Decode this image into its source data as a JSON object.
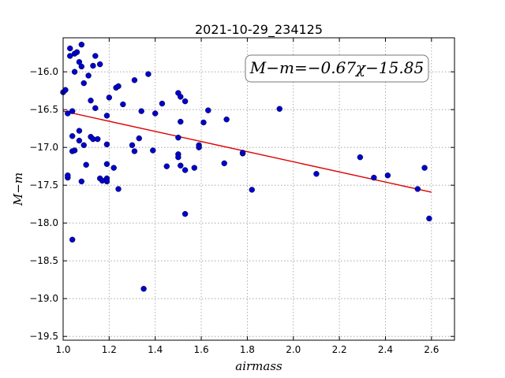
{
  "chart_data": {
    "type": "scatter",
    "title": "2021-10-29_234125",
    "xlabel": "airmass",
    "ylabel": "M−m",
    "xlim": [
      1.0,
      2.7
    ],
    "ylim": [
      -19.55,
      -15.55
    ],
    "y_inverted": true,
    "x_ticks": [
      1.0,
      1.2,
      1.4,
      1.6,
      1.8,
      2.0,
      2.2,
      2.4,
      2.6
    ],
    "y_ticks": [
      -16.0,
      -16.5,
      -17.0,
      -17.5,
      -18.0,
      -18.5,
      -19.0,
      -19.5
    ],
    "x_tick_labels": [
      "1.0",
      "1.2",
      "1.4",
      "1.6",
      "1.8",
      "2.0",
      "2.2",
      "2.4",
      "2.6"
    ],
    "y_tick_labels": [
      "−16.0",
      "−16.5",
      "−17.0",
      "−17.5",
      "−18.0",
      "−18.5",
      "−19.0",
      "−19.5"
    ],
    "grid": true,
    "annotation": "M−m=−0.67χ−15.85",
    "point_color": "#0000cc",
    "fit_color": "#dd0000",
    "fit": {
      "slope": -0.67,
      "intercept": -15.85,
      "x_range": [
        1.0,
        2.6
      ]
    },
    "points": [
      [
        1.0,
        -16.27
      ],
      [
        1.01,
        -16.24
      ],
      [
        1.02,
        -16.55
      ],
      [
        1.02,
        -17.4
      ],
      [
        1.02,
        -17.37
      ],
      [
        1.03,
        -15.69
      ],
      [
        1.03,
        -15.79
      ],
      [
        1.04,
        -16.52
      ],
      [
        1.04,
        -16.85
      ],
      [
        1.04,
        -17.05
      ],
      [
        1.04,
        -18.22
      ],
      [
        1.05,
        -15.76
      ],
      [
        1.05,
        -16.0
      ],
      [
        1.05,
        -17.04
      ],
      [
        1.06,
        -15.74
      ],
      [
        1.07,
        -15.87
      ],
      [
        1.07,
        -16.78
      ],
      [
        1.07,
        -16.91
      ],
      [
        1.08,
        -15.64
      ],
      [
        1.08,
        -15.93
      ],
      [
        1.08,
        -17.45
      ],
      [
        1.09,
        -16.15
      ],
      [
        1.09,
        -16.97
      ],
      [
        1.1,
        -17.23
      ],
      [
        1.11,
        -16.05
      ],
      [
        1.12,
        -16.38
      ],
      [
        1.12,
        -16.86
      ],
      [
        1.13,
        -16.89
      ],
      [
        1.13,
        -15.92
      ],
      [
        1.14,
        -15.79
      ],
      [
        1.14,
        -16.48
      ],
      [
        1.15,
        -16.89
      ],
      [
        1.16,
        -15.9
      ],
      [
        1.16,
        -17.41
      ],
      [
        1.17,
        -17.44
      ],
      [
        1.19,
        -16.96
      ],
      [
        1.19,
        -17.22
      ],
      [
        1.19,
        -17.41
      ],
      [
        1.19,
        -17.45
      ],
      [
        1.19,
        -16.58
      ],
      [
        1.2,
        -16.34
      ],
      [
        1.22,
        -17.27
      ],
      [
        1.23,
        -16.21
      ],
      [
        1.24,
        -16.19
      ],
      [
        1.24,
        -17.55
      ],
      [
        1.26,
        -16.43
      ],
      [
        1.3,
        -16.97
      ],
      [
        1.31,
        -16.11
      ],
      [
        1.31,
        -17.05
      ],
      [
        1.33,
        -16.88
      ],
      [
        1.34,
        -16.52
      ],
      [
        1.35,
        -18.87
      ],
      [
        1.37,
        -16.03
      ],
      [
        1.39,
        -17.04
      ],
      [
        1.4,
        -16.55
      ],
      [
        1.43,
        -16.42
      ],
      [
        1.45,
        -17.25
      ],
      [
        1.5,
        -16.28
      ],
      [
        1.5,
        -16.87
      ],
      [
        1.5,
        -17.09
      ],
      [
        1.5,
        -17.13
      ],
      [
        1.51,
        -17.24
      ],
      [
        1.51,
        -16.33
      ],
      [
        1.51,
        -16.66
      ],
      [
        1.53,
        -16.39
      ],
      [
        1.53,
        -17.3
      ],
      [
        1.53,
        -17.88
      ],
      [
        1.57,
        -17.27
      ],
      [
        1.59,
        -16.97
      ],
      [
        1.59,
        -17.0
      ],
      [
        1.61,
        -16.67
      ],
      [
        1.63,
        -16.51
      ],
      [
        1.7,
        -17.21
      ],
      [
        1.71,
        -16.63
      ],
      [
        1.78,
        -17.08
      ],
      [
        1.78,
        -17.07
      ],
      [
        1.82,
        -17.56
      ],
      [
        1.94,
        -16.49
      ],
      [
        2.1,
        -17.35
      ],
      [
        2.29,
        -17.13
      ],
      [
        2.35,
        -17.4
      ],
      [
        2.41,
        -17.37
      ],
      [
        2.54,
        -17.55
      ],
      [
        2.57,
        -17.27
      ],
      [
        2.59,
        -17.94
      ]
    ]
  }
}
